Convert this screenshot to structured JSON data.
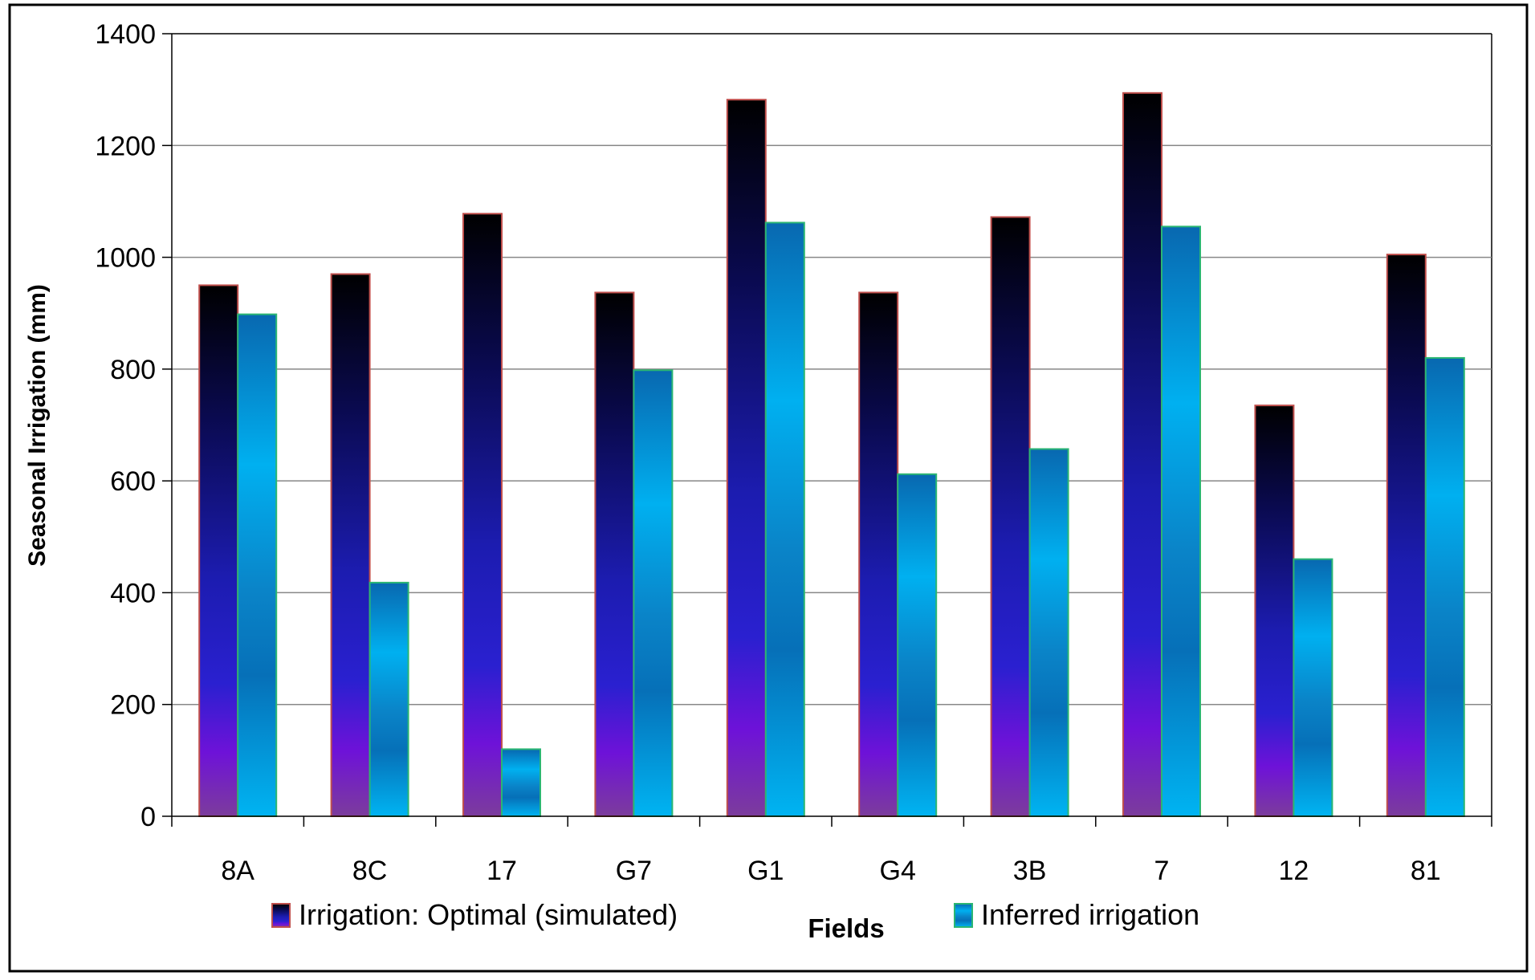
{
  "chart_data": {
    "type": "bar",
    "xlabel": "Fields",
    "ylabel": "Seasonal Irrigation (mm)",
    "categories": [
      "8A",
      "8C",
      "17",
      "G7",
      "G1",
      "G4",
      "3B",
      "7",
      "12",
      "81"
    ],
    "ylim": [
      0,
      1400
    ],
    "yticks": [
      0,
      200,
      400,
      600,
      800,
      1000,
      1200,
      1400
    ],
    "grid": true,
    "legend_position": "bottom",
    "series": [
      {
        "name": "Irrigation: Optimal (simulated)",
        "values": [
          950,
          970,
          1078,
          937,
          1282,
          937,
          1072,
          1294,
          735,
          1005
        ],
        "stroke": "#c0504d",
        "gradient": [
          "#000000",
          "#0b0b3a",
          "#1a1aa0",
          "#2020c0",
          "#6a10d8",
          "#7a3aa8"
        ]
      },
      {
        "name": "Inferred irrigation",
        "values": [
          898,
          418,
          120,
          798,
          1062,
          612,
          657,
          1055,
          460,
          820
        ],
        "stroke": "#2bb673",
        "gradient": [
          "#0a6fb5",
          "#00b0f0",
          "#0a7fc0",
          "#00b0f0"
        ]
      }
    ]
  }
}
